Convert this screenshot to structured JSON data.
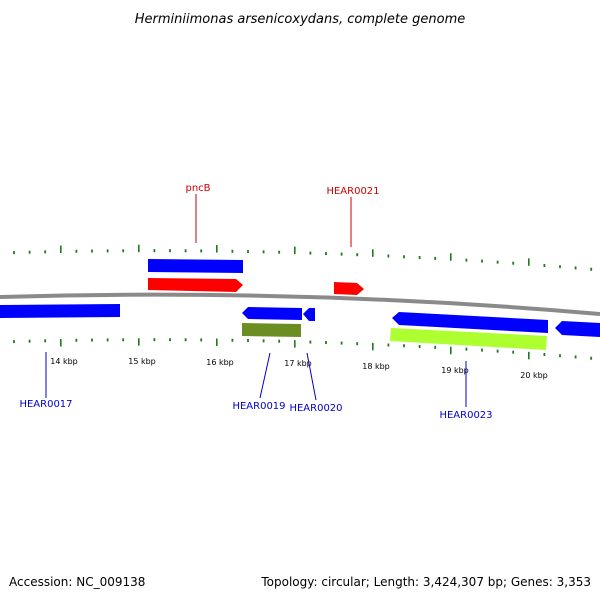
{
  "title": "Herminiimonas arsenicoxydans, complete genome",
  "footer": {
    "accession": "Accession: NC_009138",
    "summary": "Topology: circular; Length: 3,424,307 bp; Genes: 3,353"
  },
  "colors": {
    "backbone": "#8a8a8a",
    "tick": "#1e7a1e",
    "gene_forward_blue": "#0000ff",
    "gene_forward_red": "#ff0000",
    "olive": "#6b8e23",
    "lime": "#adff2f",
    "label_blue": "#0000cc",
    "label_red": "#cc0000"
  },
  "ticks": [
    {
      "label": "14 kbp"
    },
    {
      "label": "15 kbp"
    },
    {
      "label": "16 kbp"
    },
    {
      "label": "17 kbp"
    },
    {
      "label": "18 kbp"
    },
    {
      "label": "19 kbp"
    },
    {
      "label": "20 kbp"
    }
  ],
  "gene_labels": [
    {
      "name": "pncB",
      "color": "#cc0000"
    },
    {
      "name": "HEAR0021",
      "color": "#cc0000"
    },
    {
      "name": "HEAR0017",
      "color": "#0000cc"
    },
    {
      "name": "HEAR0019",
      "color": "#0000cc"
    },
    {
      "name": "HEAR0020",
      "color": "#0000cc"
    },
    {
      "name": "HEAR0023",
      "color": "#0000cc"
    }
  ]
}
